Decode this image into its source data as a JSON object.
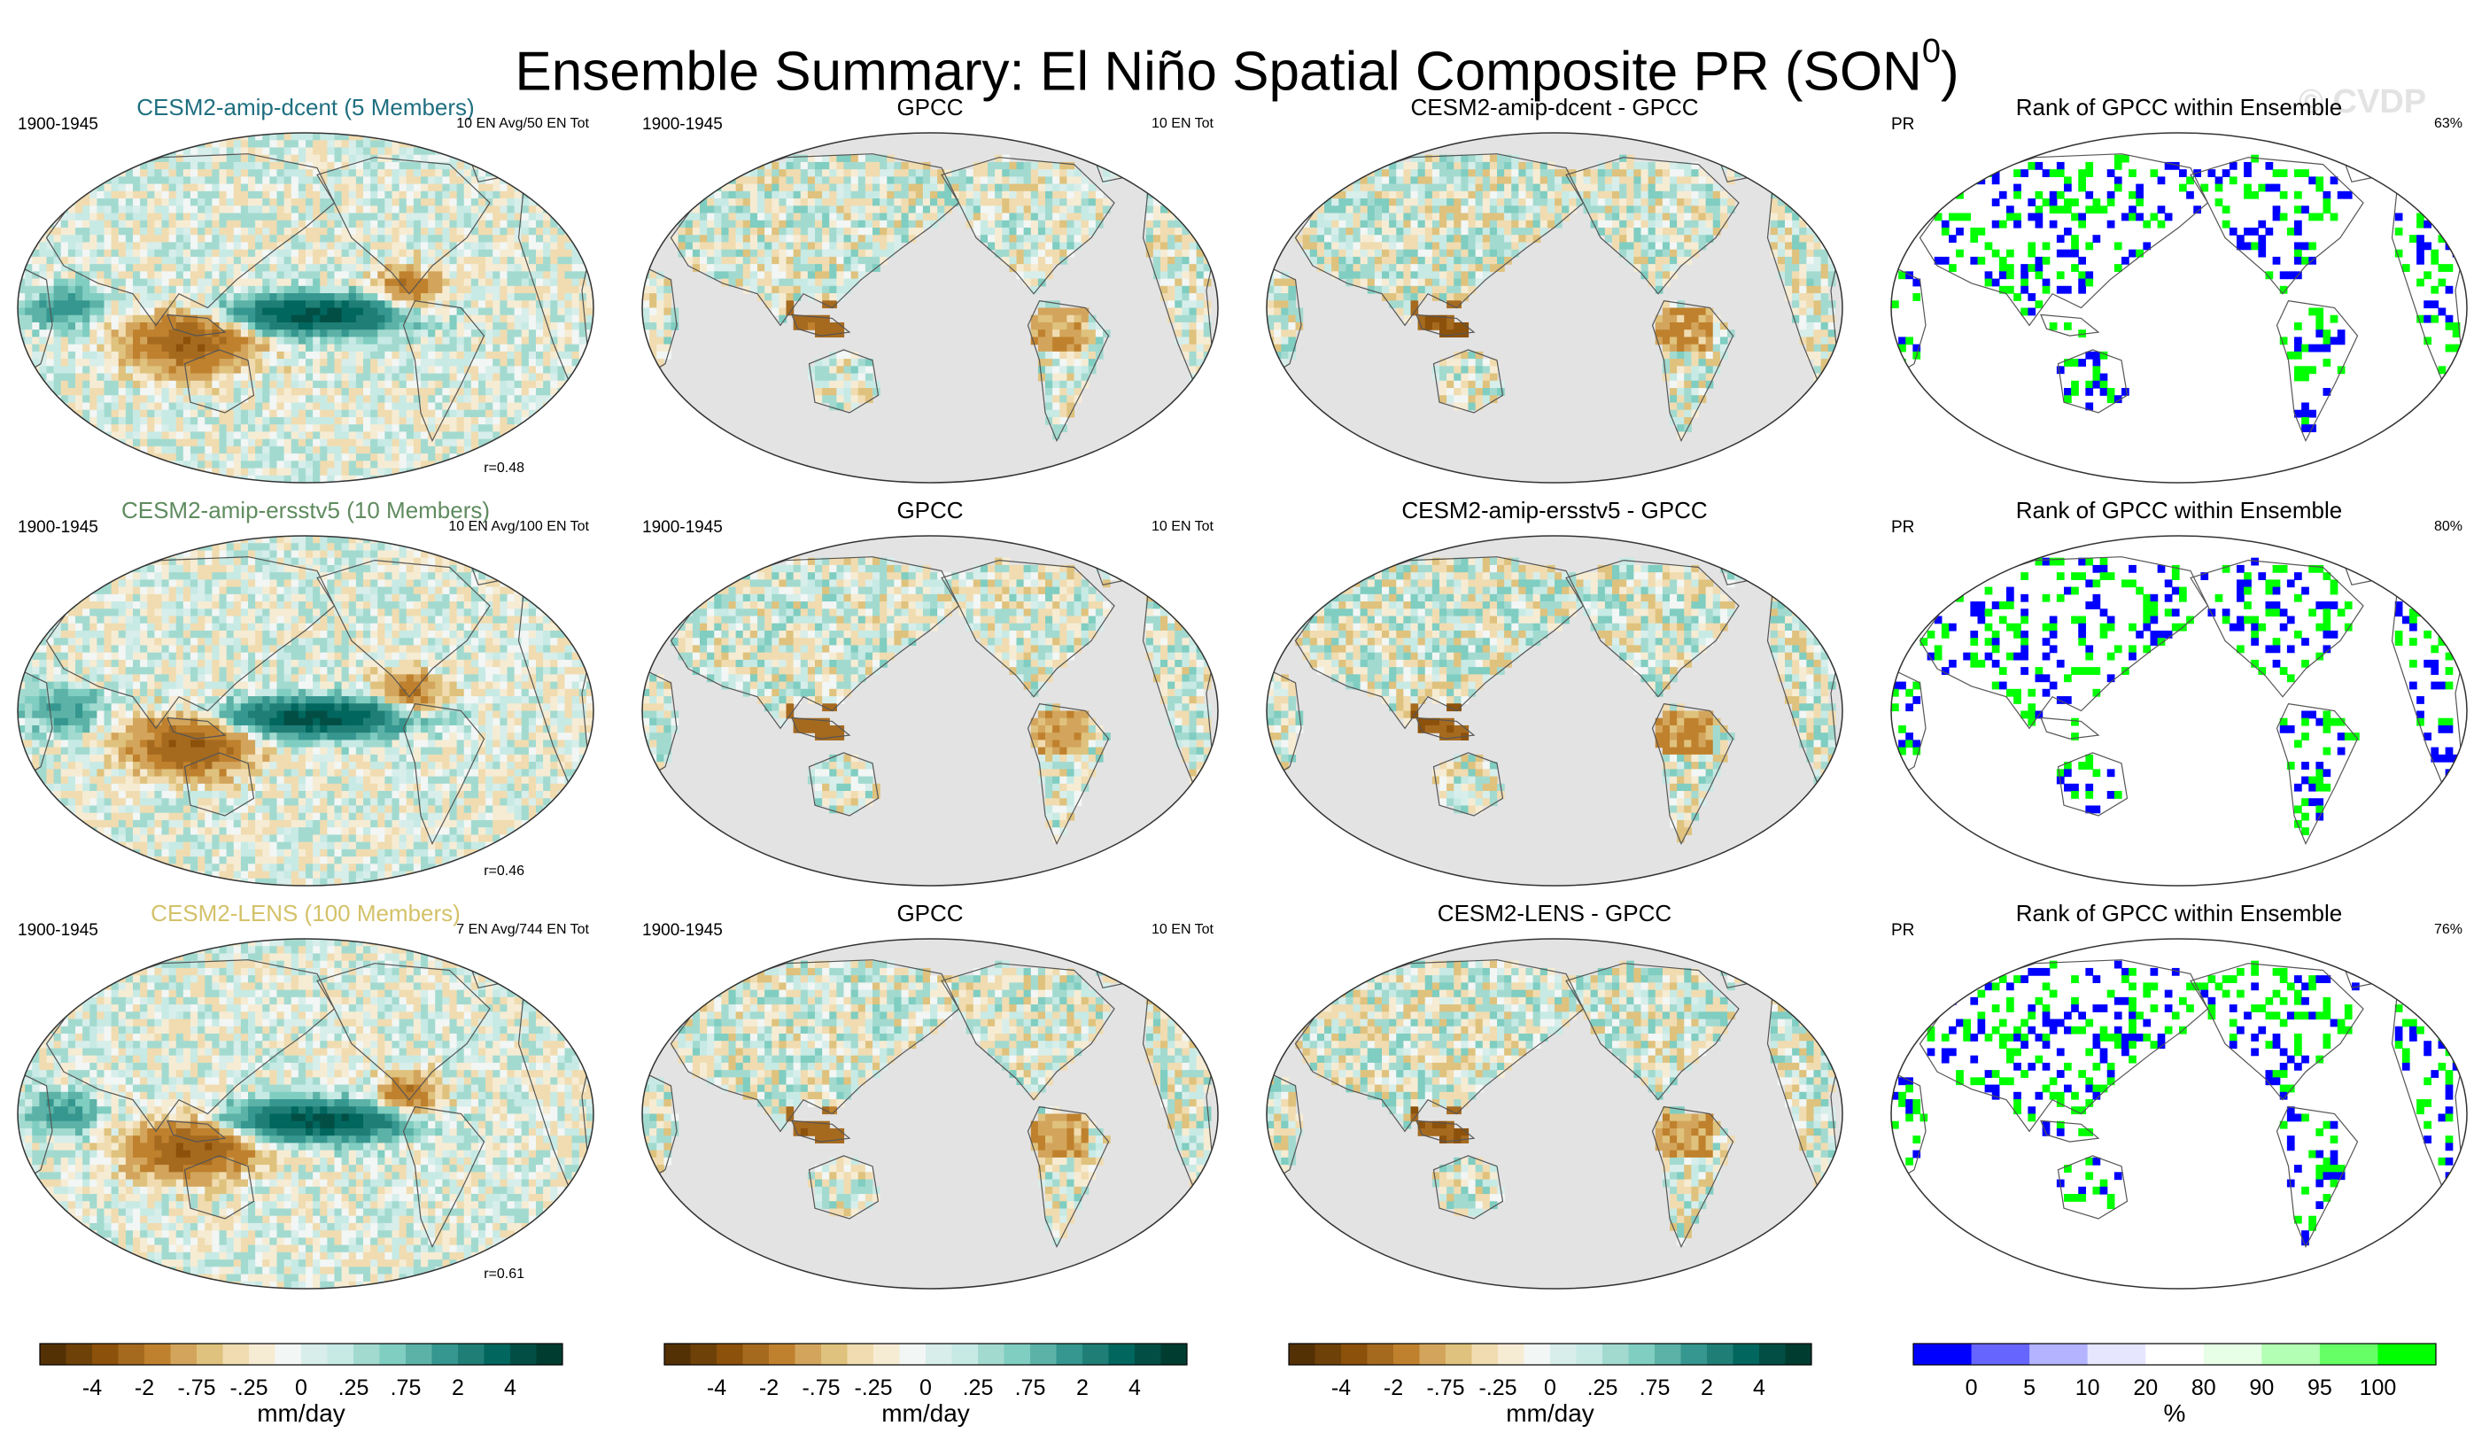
{
  "title": "Ensemble Summary: El Niño Spatial Composite PR (SON",
  "title_sup": "0",
  "title_close": ")",
  "watermark": "© CVDP",
  "chart_data": [
    {
      "type": "heatmap",
      "variable": "PR",
      "title": "CESM2-amip-dcent (5 Members)",
      "title_color": "#1f6f80",
      "period": "1900-1945",
      "right_label": "10 EN Avg/50 EN Tot",
      "corner_label": "r=0.48",
      "fill": "model"
    },
    {
      "type": "heatmap",
      "variable": "PR",
      "title": "GPCC",
      "title_color": "#000000",
      "period": "1900-1945",
      "right_label": "10 EN Tot",
      "corner_label": "",
      "fill": "obs"
    },
    {
      "type": "heatmap",
      "variable": "PR",
      "title": "CESM2-amip-dcent - GPCC",
      "title_color": "#000000",
      "period": "",
      "right_label": "",
      "corner_label": "",
      "fill": "diff"
    },
    {
      "type": "heatmap",
      "variable": "PR",
      "title": "Rank of GPCC within Ensemble",
      "title_color": "#000000",
      "period": "PR",
      "right_label": "63%",
      "corner_label": "",
      "fill": "rank"
    },
    {
      "type": "heatmap",
      "variable": "PR",
      "title": "CESM2-amip-ersstv5 (10 Members)",
      "title_color": "#5f8b5f",
      "period": "1900-1945",
      "right_label": "10 EN Avg/100 EN Tot",
      "corner_label": "r=0.46",
      "fill": "model"
    },
    {
      "type": "heatmap",
      "variable": "PR",
      "title": "GPCC",
      "title_color": "#000000",
      "period": "1900-1945",
      "right_label": "10 EN Tot",
      "corner_label": "",
      "fill": "obs"
    },
    {
      "type": "heatmap",
      "variable": "PR",
      "title": "CESM2-amip-ersstv5 - GPCC",
      "title_color": "#000000",
      "period": "",
      "right_label": "",
      "corner_label": "",
      "fill": "diff"
    },
    {
      "type": "heatmap",
      "variable": "PR",
      "title": "Rank of GPCC within Ensemble",
      "title_color": "#000000",
      "period": "PR",
      "right_label": "80%",
      "corner_label": "",
      "fill": "rank"
    },
    {
      "type": "heatmap",
      "variable": "PR",
      "title": "CESM2-LENS (100 Members)",
      "title_color": "#d4c26a",
      "period": "1900-1945",
      "right_label": "7 EN Avg/744 EN Tot",
      "corner_label": "r=0.61",
      "fill": "model"
    },
    {
      "type": "heatmap",
      "variable": "PR",
      "title": "GPCC",
      "title_color": "#000000",
      "period": "1900-1945",
      "right_label": "10 EN Tot",
      "corner_label": "",
      "fill": "obs"
    },
    {
      "type": "heatmap",
      "variable": "PR",
      "title": "CESM2-LENS - GPCC",
      "title_color": "#000000",
      "period": "",
      "right_label": "",
      "corner_label": "",
      "fill": "diff"
    },
    {
      "type": "heatmap",
      "variable": "PR",
      "title": "Rank of GPCC within Ensemble",
      "title_color": "#000000",
      "period": "PR",
      "right_label": "76%",
      "corner_label": "",
      "fill": "rank"
    }
  ],
  "colorbars": [
    {
      "units": "mm/day",
      "ticks": [
        "-4",
        "-2",
        "-.75",
        "-.25",
        "0",
        ".25",
        ".75",
        "2",
        "4"
      ],
      "colors": [
        "#543005",
        "#6e4109",
        "#8c510a",
        "#a66a1f",
        "#bf812d",
        "#d3a55c",
        "#dfc27d",
        "#f0dcb0",
        "#f6ecd4",
        "#f2f6f4",
        "#d7eeeb",
        "#c7eae5",
        "#a3dad0",
        "#80cdc1",
        "#5cb2a7",
        "#35978f",
        "#1f7f76",
        "#01665e",
        "#024e45",
        "#003c30"
      ]
    },
    {
      "units": "mm/day",
      "ticks": [
        "-4",
        "-2",
        "-.75",
        "-.25",
        "0",
        ".25",
        ".75",
        "2",
        "4"
      ],
      "colors": [
        "#543005",
        "#6e4109",
        "#8c510a",
        "#a66a1f",
        "#bf812d",
        "#d3a55c",
        "#dfc27d",
        "#f0dcb0",
        "#f6ecd4",
        "#f2f6f4",
        "#d7eeeb",
        "#c7eae5",
        "#a3dad0",
        "#80cdc1",
        "#5cb2a7",
        "#35978f",
        "#1f7f76",
        "#01665e",
        "#024e45",
        "#003c30"
      ]
    },
    {
      "units": "mm/day",
      "ticks": [
        "-4",
        "-2",
        "-.75",
        "-.25",
        "0",
        ".25",
        ".75",
        "2",
        "4"
      ],
      "colors": [
        "#543005",
        "#6e4109",
        "#8c510a",
        "#a66a1f",
        "#bf812d",
        "#d3a55c",
        "#dfc27d",
        "#f0dcb0",
        "#f6ecd4",
        "#f2f6f4",
        "#d7eeeb",
        "#c7eae5",
        "#a3dad0",
        "#80cdc1",
        "#5cb2a7",
        "#35978f",
        "#1f7f76",
        "#01665e",
        "#024e45",
        "#003c30"
      ]
    },
    {
      "units": "%",
      "ticks": [
        "0",
        "5",
        "10",
        "20",
        "80",
        "90",
        "95",
        "100"
      ],
      "colors": [
        "#0000ff",
        "#6666ff",
        "#b3b3ff",
        "#e6e6ff",
        "#ffffff",
        "#e6ffe6",
        "#b3ffb3",
        "#66ff66",
        "#00ff00"
      ]
    }
  ]
}
